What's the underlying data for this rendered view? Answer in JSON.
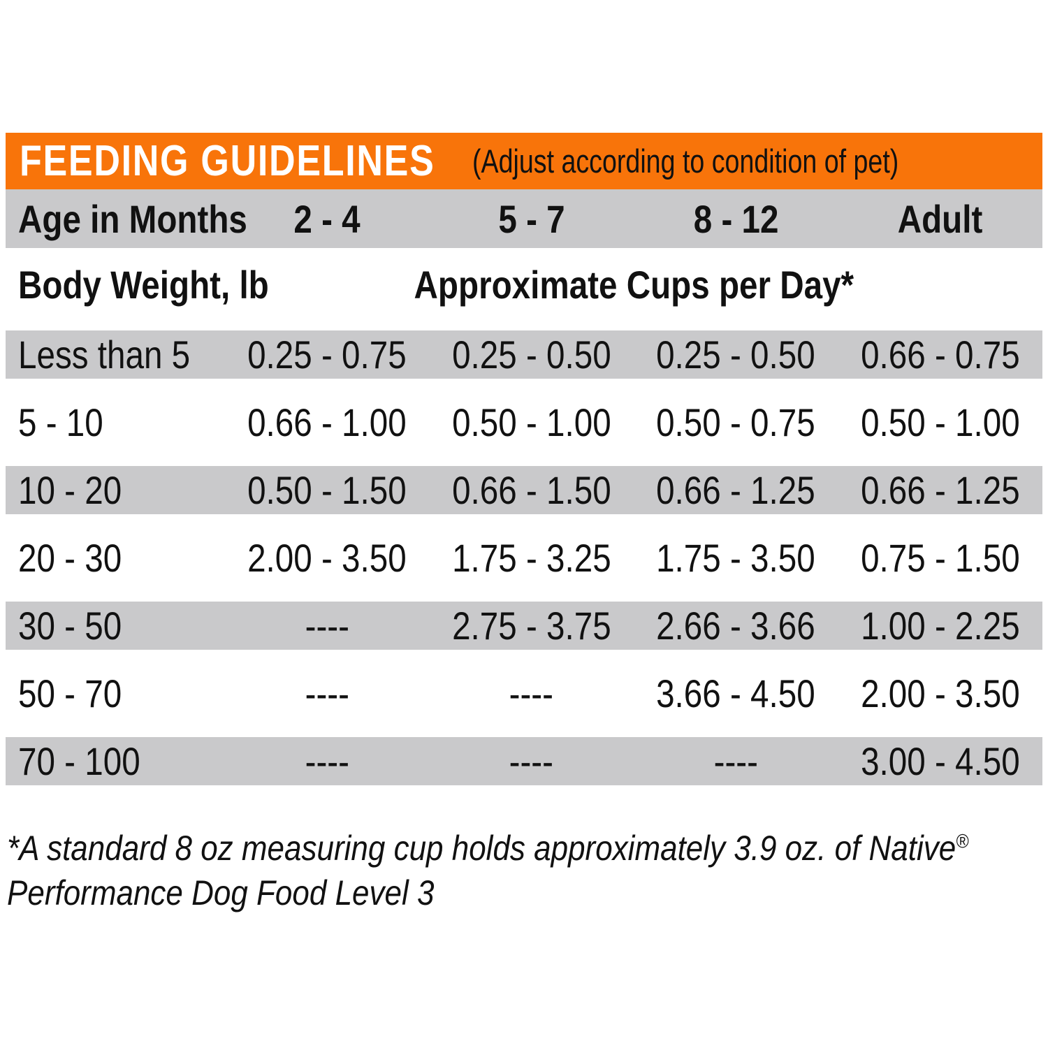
{
  "header": {
    "title": "FEEDING GUIDELINES",
    "subtitle": "(Adjust according to condition of pet)"
  },
  "table": {
    "age_header": {
      "label": "Age in Months",
      "columns": [
        "2 - 4",
        "5 - 7",
        "8 - 12",
        "Adult"
      ]
    },
    "subheader": {
      "left": "Body Weight, lb",
      "right": "Approximate Cups per Day*"
    },
    "rows": [
      {
        "weight": "Less than 5",
        "values": [
          "0.25 - 0.75",
          "0.25 - 0.50",
          "0.25 - 0.50",
          "0.66 - 0.75"
        ],
        "shaded": true
      },
      {
        "weight": "5 - 10",
        "values": [
          "0.66 - 1.00",
          "0.50 - 1.00",
          "0.50 - 0.75",
          "0.50 - 1.00"
        ],
        "shaded": false
      },
      {
        "weight": "10 - 20",
        "values": [
          "0.50 - 1.50",
          "0.66 - 1.50",
          "0.66 - 1.25",
          "0.66 - 1.25"
        ],
        "shaded": true
      },
      {
        "weight": "20 - 30",
        "values": [
          "2.00 - 3.50",
          "1.75 - 3.25",
          "1.75 - 3.50",
          "0.75 - 1.50"
        ],
        "shaded": false
      },
      {
        "weight": "30 - 50",
        "values": [
          "----",
          "2.75 - 3.75",
          "2.66 - 3.66",
          "1.00 - 2.25"
        ],
        "shaded": true
      },
      {
        "weight": "50 - 70",
        "values": [
          "----",
          "----",
          "3.66 - 4.50",
          "2.00 - 3.50"
        ],
        "shaded": false
      },
      {
        "weight": "70 - 100",
        "values": [
          "----",
          "----",
          "----",
          "3.00 - 4.50"
        ],
        "shaded": true
      }
    ]
  },
  "footnote": {
    "line1": "*A standard 8 oz measuring cup holds approximately 3.9 oz. of Native",
    "registered_mark": "®",
    "line2": "Performance Dog Food Level 3"
  },
  "colors": {
    "accent_orange": "#F8740A",
    "row_gray": "#C9C9CB"
  }
}
